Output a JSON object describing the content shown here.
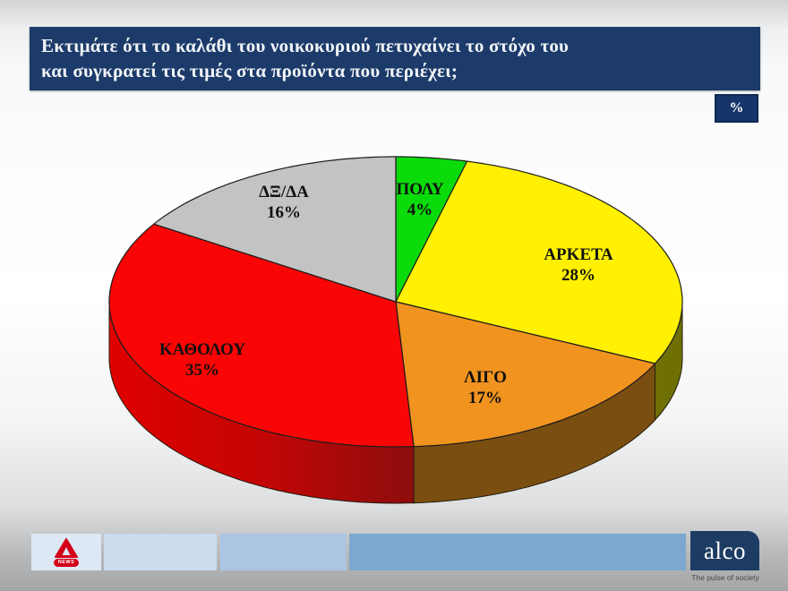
{
  "header": {
    "question_line1": "Εκτιμάτε ότι το καλάθι του νοικοκυριού πετυχαίνει το στόχο του",
    "question_line2": "και συγκρατεί τις τιμές στα προϊόντα που περιέχει;",
    "unit_badge": "%"
  },
  "chart_data": {
    "type": "pie",
    "three_d": true,
    "title": "Εκτιμάτε ότι το καλάθι του νοικοκυριού πετυχαίνει το στόχο του και συγκρατεί τις τιμές στα προϊόντα που περιέχει;",
    "unit": "%",
    "start_angle_deg": 0,
    "direction": "clockwise",
    "slices": [
      {
        "label": "ΠΟΛΥ",
        "value": 4,
        "pct_label": "4%",
        "color": "#0bdb0b"
      },
      {
        "label": "ΑΡΚΕΤΑ",
        "value": 28,
        "pct_label": "28%",
        "color": "#fff101",
        "side_color": "#6e7004"
      },
      {
        "label": "ΛΙΓΟ",
        "value": 17,
        "pct_label": "17%",
        "color": "#f1931f",
        "side_color": "#7a4e10"
      },
      {
        "label": "ΚΑΘΟΛΟΥ",
        "value": 35,
        "pct_label": "35%",
        "color": "#f90505",
        "side_gradient": [
          "#e00000",
          "#c40505",
          "#8c0d0d"
        ]
      },
      {
        "label": "ΔΞ/ΔΑ",
        "value": 16,
        "pct_label": "16%",
        "color": "#c3c3c3"
      }
    ]
  },
  "footer": {
    "alpha_news_label": "NEWS",
    "alco_label": "alco",
    "alco_tagline": "The pulse of society"
  }
}
